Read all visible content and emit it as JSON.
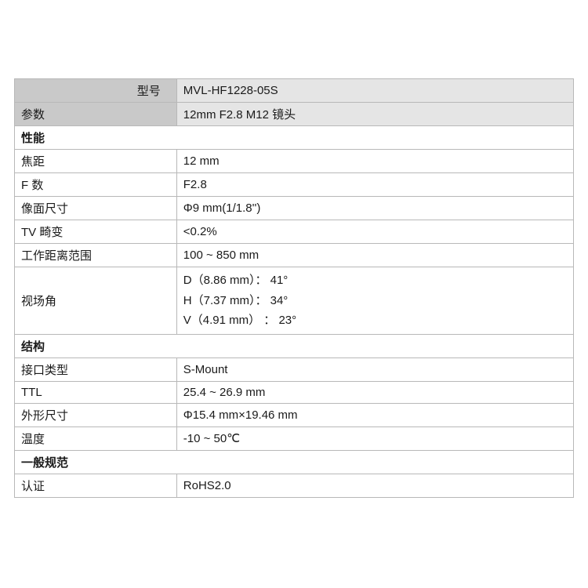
{
  "header": {
    "model_label": "型号",
    "model_value": "MVL-HF1228-05S",
    "param_label": "参数",
    "param_value": "12mm F2.8 M12 镜头"
  },
  "sections": {
    "performance": "性能",
    "structure": "结构",
    "general": "一般规范"
  },
  "rows": {
    "focal_length_label": "焦距",
    "focal_length_value": "12 mm",
    "fnumber_label": "F 数",
    "fnumber_value": "F2.8",
    "image_size_label": "像面尺寸",
    "image_size_value": "Φ9 mm(1/1.8'')",
    "tv_distortion_label": "TV 畸变",
    "tv_distortion_value": "<0.2%",
    "working_distance_label": "工作距离范围",
    "working_distance_value": "100 ~ 850 mm",
    "fov_label": "视场角",
    "fov_d": "D（8.86 mm）： 41°",
    "fov_h": "H（7.37 mm）： 34°",
    "fov_v": "V（4.91 mm） ：  23°",
    "mount_label": "接口类型",
    "mount_value": "S-Mount",
    "ttl_label": "TTL",
    "ttl_value": "25.4 ~ 26.9 mm",
    "dimensions_label": "外形尺寸",
    "dimensions_value": "Φ15.4 mm×19.46 mm",
    "temperature_label": "温度",
    "temperature_value": "-10 ~ 50℃",
    "certification_label": "认证",
    "certification_value": "RoHS2.0"
  },
  "style": {
    "border_color": "#b8b8b8",
    "header_bg": "#c9c9c9",
    "subheader_bg": "#e5e5e5",
    "section_bg": "#ffffff",
    "text_color": "#1a1a1a",
    "font_size": 15,
    "col1_width_pct": 29
  }
}
